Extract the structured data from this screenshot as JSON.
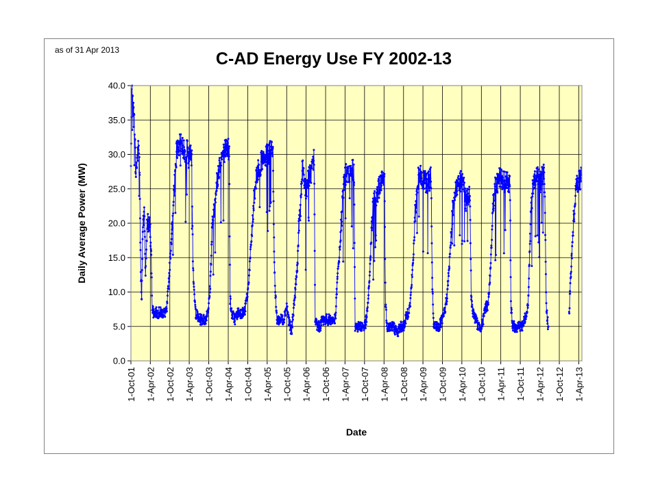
{
  "note": "as of 31 Apr 2013",
  "chart_data": {
    "type": "line",
    "title": "C-AD Energy Use FY 2002-13",
    "xlabel": "Date",
    "ylabel": "Daily Average Power (MW)",
    "ylim": [
      0,
      40
    ],
    "yticks": [
      "0.0",
      "5.0",
      "10.0",
      "15.0",
      "20.0",
      "25.0",
      "30.0",
      "35.0",
      "40.0"
    ],
    "xticks": [
      "1-Oct-01",
      "1-Apr-02",
      "1-Oct-02",
      "1-Apr-03",
      "1-Oct-03",
      "1-Apr-04",
      "1-Oct-04",
      "1-Apr-05",
      "1-Oct-05",
      "1-Apr-06",
      "1-Oct-06",
      "1-Apr-07",
      "1-Oct-07",
      "1-Apr-08",
      "1-Oct-08",
      "1-Apr-09",
      "1-Oct-09",
      "1-Apr-10",
      "1-Oct-10",
      "1-Apr-11",
      "1-Oct-11",
      "1-Apr-12",
      "1-Oct-12",
      "1-Apr-13"
    ],
    "xlim": [
      "2001-10-01",
      "2013-05-01"
    ],
    "grid": true,
    "plot_background": "#ffffc0",
    "series_color": "#0000ff",
    "series": [
      {
        "points": [
          [
            "2001-10-01",
            28
          ],
          [
            "2001-10-08",
            40
          ],
          [
            "2001-10-20",
            37
          ],
          [
            "2001-11-05",
            34
          ],
          [
            "2001-11-15",
            27
          ],
          [
            "2001-12-01",
            30
          ],
          [
            "2001-12-15",
            31
          ],
          [
            "2001-12-22",
            27
          ],
          [
            "2002-01-01",
            13
          ],
          [
            "2002-01-10",
            9
          ],
          [
            "2002-01-20",
            20
          ],
          [
            "2002-02-05",
            21
          ],
          [
            "2002-02-15",
            12
          ],
          [
            "2002-03-01",
            20
          ],
          [
            "2002-03-15",
            20
          ],
          [
            "2002-04-01",
            19
          ],
          [
            "2002-04-10",
            15
          ],
          [
            "2002-04-18",
            8
          ],
          [
            "2002-05-01",
            7
          ],
          [
            "2002-06-01",
            7
          ],
          [
            "2002-07-01",
            7
          ],
          [
            "2002-08-01",
            7
          ],
          [
            "2002-09-01",
            7
          ],
          [
            "2002-10-01",
            14
          ],
          [
            "2002-10-20",
            19
          ],
          [
            "2002-11-05",
            23
          ],
          [
            "2002-11-20",
            27
          ],
          [
            "2002-12-05",
            31
          ],
          [
            "2002-12-20",
            30
          ],
          [
            "2003-01-10",
            32
          ],
          [
            "2003-02-01",
            31
          ],
          [
            "2003-02-20",
            30
          ],
          [
            "2003-03-10",
            31
          ],
          [
            "2003-03-25",
            29
          ],
          [
            "2003-04-10",
            30
          ],
          [
            "2003-04-25",
            30
          ],
          [
            "2003-05-05",
            15
          ],
          [
            "2003-05-15",
            10
          ],
          [
            "2003-06-01",
            7
          ],
          [
            "2003-07-01",
            6
          ],
          [
            "2003-08-01",
            6
          ],
          [
            "2003-09-01",
            6
          ],
          [
            "2003-10-01",
            8
          ],
          [
            "2003-10-15",
            11
          ],
          [
            "2003-11-01",
            19
          ],
          [
            "2003-11-20",
            22
          ],
          [
            "2003-12-10",
            25
          ],
          [
            "2003-12-25",
            27
          ],
          [
            "2004-01-15",
            29
          ],
          [
            "2004-02-10",
            30
          ],
          [
            "2004-03-10",
            31
          ],
          [
            "2004-04-01",
            31
          ],
          [
            "2004-04-10",
            30
          ],
          [
            "2004-04-18",
            9
          ],
          [
            "2004-05-01",
            7
          ],
          [
            "2004-06-01",
            6
          ],
          [
            "2004-07-01",
            7
          ],
          [
            "2004-08-01",
            7
          ],
          [
            "2004-09-01",
            7
          ],
          [
            "2004-10-01",
            10
          ],
          [
            "2004-10-20",
            14
          ],
          [
            "2004-11-10",
            19
          ],
          [
            "2004-12-01",
            24
          ],
          [
            "2004-12-20",
            27
          ],
          [
            "2005-01-15",
            28
          ],
          [
            "2005-02-10",
            29
          ],
          [
            "2005-03-10",
            29
          ],
          [
            "2005-04-01",
            30
          ],
          [
            "2005-04-20",
            30
          ],
          [
            "2005-05-10",
            31
          ],
          [
            "2005-05-25",
            31
          ],
          [
            "2005-06-05",
            16
          ],
          [
            "2005-06-15",
            10
          ],
          [
            "2005-07-01",
            6
          ],
          [
            "2005-08-01",
            6
          ],
          [
            "2005-09-01",
            6
          ],
          [
            "2005-10-01",
            8
          ],
          [
            "2005-10-20",
            6
          ],
          [
            "2005-11-15",
            4
          ],
          [
            "2005-12-01",
            7
          ],
          [
            "2005-12-20",
            10
          ],
          [
            "2006-01-10",
            14
          ],
          [
            "2006-01-25",
            20
          ],
          [
            "2006-02-10",
            23
          ],
          [
            "2006-02-25",
            28
          ],
          [
            "2006-03-15",
            27
          ],
          [
            "2006-04-01",
            24
          ],
          [
            "2006-04-20",
            27
          ],
          [
            "2006-05-10",
            27
          ],
          [
            "2006-06-01",
            28
          ],
          [
            "2006-06-15",
            30
          ],
          [
            "2006-06-25",
            6
          ],
          [
            "2006-07-15",
            5
          ],
          [
            "2006-08-10",
            5
          ],
          [
            "2006-09-01",
            6
          ],
          [
            "2006-10-01",
            6
          ],
          [
            "2006-11-01",
            6
          ],
          [
            "2006-12-01",
            6
          ],
          [
            "2007-01-01",
            6
          ],
          [
            "2007-01-20",
            12
          ],
          [
            "2007-02-10",
            16
          ],
          [
            "2007-03-01",
            21
          ],
          [
            "2007-03-20",
            26
          ],
          [
            "2007-04-10",
            27
          ],
          [
            "2007-05-01",
            27
          ],
          [
            "2007-05-20",
            27
          ],
          [
            "2007-06-10",
            28
          ],
          [
            "2007-06-25",
            27
          ],
          [
            "2007-07-05",
            5
          ],
          [
            "2007-08-01",
            5
          ],
          [
            "2007-09-01",
            5
          ],
          [
            "2007-10-01",
            5
          ],
          [
            "2007-10-20",
            6
          ],
          [
            "2007-11-10",
            10
          ],
          [
            "2007-11-25",
            15
          ],
          [
            "2007-12-10",
            20
          ],
          [
            "2007-12-25",
            23
          ],
          [
            "2008-01-15",
            24
          ],
          [
            "2008-02-10",
            25
          ],
          [
            "2008-03-01",
            26
          ],
          [
            "2008-03-20",
            26
          ],
          [
            "2008-04-05",
            27
          ],
          [
            "2008-04-15",
            8
          ],
          [
            "2008-05-01",
            5
          ],
          [
            "2008-06-01",
            5
          ],
          [
            "2008-07-01",
            5
          ],
          [
            "2008-08-01",
            4
          ],
          [
            "2008-09-01",
            5
          ],
          [
            "2008-10-01",
            5
          ],
          [
            "2008-10-20",
            6
          ],
          [
            "2008-11-10",
            7
          ],
          [
            "2008-12-01",
            8
          ],
          [
            "2008-12-15",
            11
          ],
          [
            "2009-01-01",
            15
          ],
          [
            "2009-01-15",
            21
          ],
          [
            "2009-02-01",
            24
          ],
          [
            "2009-02-20",
            27
          ],
          [
            "2009-03-10",
            27
          ],
          [
            "2009-04-01",
            26
          ],
          [
            "2009-04-20",
            26
          ],
          [
            "2009-05-10",
            26
          ],
          [
            "2009-06-01",
            26
          ],
          [
            "2009-06-15",
            27
          ],
          [
            "2009-06-28",
            11
          ],
          [
            "2009-07-10",
            5
          ],
          [
            "2009-08-01",
            5
          ],
          [
            "2009-09-01",
            5
          ],
          [
            "2009-10-01",
            6
          ],
          [
            "2009-10-20",
            7
          ],
          [
            "2009-11-10",
            9
          ],
          [
            "2009-12-01",
            13
          ],
          [
            "2009-12-20",
            18
          ],
          [
            "2010-01-05",
            22
          ],
          [
            "2010-01-20",
            24
          ],
          [
            "2010-02-10",
            25
          ],
          [
            "2010-03-01",
            26
          ],
          [
            "2010-03-25",
            26
          ],
          [
            "2010-04-10",
            26
          ],
          [
            "2010-04-25",
            25
          ],
          [
            "2010-05-10",
            23
          ],
          [
            "2010-05-25",
            24
          ],
          [
            "2010-06-15",
            24
          ],
          [
            "2010-06-28",
            9
          ],
          [
            "2010-07-15",
            7
          ],
          [
            "2010-08-10",
            6
          ],
          [
            "2010-09-01",
            5
          ],
          [
            "2010-10-01",
            5
          ],
          [
            "2010-10-20",
            6
          ],
          [
            "2010-11-10",
            8
          ],
          [
            "2010-12-01",
            8
          ],
          [
            "2010-12-20",
            12
          ],
          [
            "2011-01-05",
            17
          ],
          [
            "2011-01-20",
            23
          ],
          [
            "2011-02-10",
            26
          ],
          [
            "2011-03-01",
            26
          ],
          [
            "2011-03-25",
            27
          ],
          [
            "2011-04-15",
            26
          ],
          [
            "2011-05-01",
            26
          ],
          [
            "2011-05-20",
            26
          ],
          [
            "2011-06-10",
            26
          ],
          [
            "2011-06-25",
            26
          ],
          [
            "2011-07-05",
            8
          ],
          [
            "2011-07-20",
            5
          ],
          [
            "2011-08-15",
            5
          ],
          [
            "2011-09-10",
            5
          ],
          [
            "2011-10-01",
            5
          ],
          [
            "2011-10-20",
            5
          ],
          [
            "2011-11-10",
            6
          ],
          [
            "2011-12-01",
            7
          ],
          [
            "2011-12-15",
            9
          ],
          [
            "2012-01-01",
            18
          ],
          [
            "2012-01-15",
            23
          ],
          [
            "2012-02-01",
            26
          ],
          [
            "2012-02-20",
            27
          ],
          [
            "2012-03-10",
            27
          ],
          [
            "2012-03-25",
            26
          ],
          [
            "2012-04-10",
            26
          ],
          [
            "2012-04-25",
            27
          ],
          [
            "2012-05-10",
            27
          ],
          [
            "2012-05-20",
            22
          ],
          [
            "2012-06-01",
            8
          ],
          [
            "2012-06-10",
            6
          ],
          [
            "2012-06-20",
            5
          ]
        ]
      },
      {
        "points": [
          [
            "2013-01-01",
            7
          ],
          [
            "2013-01-10",
            10
          ],
          [
            "2013-01-25",
            15
          ],
          [
            "2013-02-10",
            20
          ],
          [
            "2013-02-25",
            23
          ],
          [
            "2013-03-10",
            26
          ],
          [
            "2013-03-25",
            26
          ],
          [
            "2013-04-10",
            26
          ],
          [
            "2013-04-25",
            27
          ]
        ]
      }
    ]
  }
}
